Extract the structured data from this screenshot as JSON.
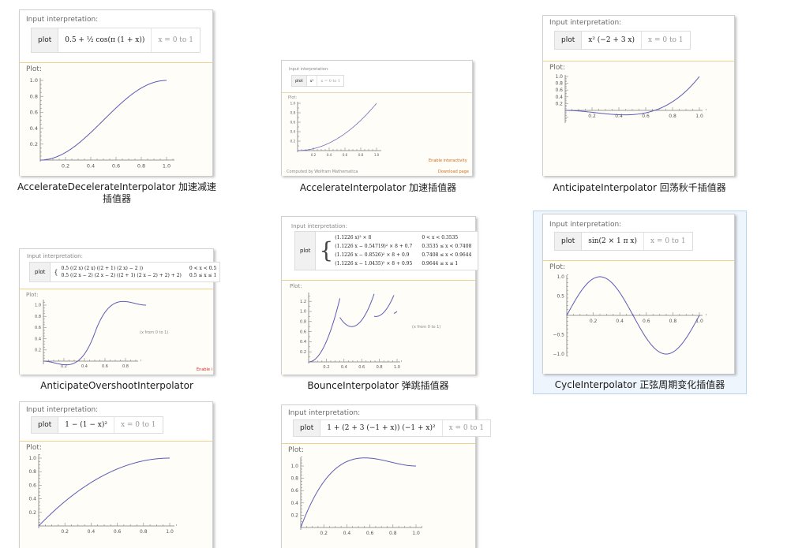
{
  "common": {
    "input_label": "Input interpretation:",
    "plot_label": "Plot:",
    "plot_word": "plot"
  },
  "tiles": [
    {
      "caption": "AccelerateDecelerateInterpolator 加速减速插值器",
      "expr": "0.5 + ½ cos(π (1 + x))",
      "range": "x = 0 to 1",
      "ticks_x": [
        "0.2",
        "0.4",
        "0.6",
        "0.8",
        "1.0"
      ],
      "ticks_y": [
        "0.2",
        "0.4",
        "0.6",
        "0.8",
        "1.0"
      ]
    },
    {
      "caption": "AccelerateInterpolator 加速插值器",
      "expr": "x²",
      "range": "x = 0 to 1",
      "ticks_x": [
        "0.2",
        "0.4",
        "0.6",
        "0.8",
        "1.0"
      ],
      "ticks_y": [
        "0.2",
        "0.4",
        "0.6",
        "0.8",
        "1.0"
      ],
      "footer_left": "Computed by Wolfram Mathematica",
      "footer_right": "Download page",
      "footer_link": "Enable interactivity"
    },
    {
      "caption": "AnticipateInterpolator 回荡秋千插值器",
      "expr": "x² (−2 + 3 x)",
      "range": "x = 0 to 1",
      "ticks_x": [
        "0.2",
        "0.4",
        "0.6",
        "0.8",
        "1.0"
      ],
      "ticks_y": [
        "0.2",
        "0.4",
        "0.6",
        "0.8",
        "1.0"
      ]
    },
    {
      "caption": "AnticipateOvershootInterpolator",
      "piece1": "0.5 ((2 x) (2 x) ((2 + 1) (2 x) − 2 ))",
      "cond1": "0 < x < 0.5",
      "piece2": "0.5 ((2 x − 2) (2 x − 2) ((2 + 1) (2 x − 2) + 2) + 2)",
      "cond2": "0.5 ≤ x ≤ 1",
      "note": "(x from 0 to 1)",
      "enable": "Enable i",
      "ticks_x": [
        "0.2",
        "0.4",
        "0.6",
        "0.8"
      ],
      "ticks_y": [
        "0.2",
        "0.4",
        "0.6",
        "0.8",
        "1.0"
      ]
    },
    {
      "caption": "BounceInterpolator 弹跳插值器",
      "pieces": [
        {
          "expr": "(1.1226 x)² × 8",
          "cond": "0 < x < 0.3535"
        },
        {
          "expr": "(1.1226 x − 0.54719)² × 8 + 0.7",
          "cond": "0.3535 ≤ x < 0.7408"
        },
        {
          "expr": "(1.1226 x − 0.8526)² × 8 + 0.9",
          "cond": "0.7408 ≤ x < 0.9644"
        },
        {
          "expr": "(1.1226 x − 1.0435)² × 8 + 0.95",
          "cond": "0.9644 ≤ x ≤ 1"
        }
      ],
      "note": "(x from 0 to 1)",
      "ticks_x": [
        "0.2",
        "0.4",
        "0.6",
        "0.8",
        "1.0"
      ],
      "ticks_y": [
        "0.2",
        "0.4",
        "0.6",
        "0.8",
        "1.0",
        "1.2"
      ]
    },
    {
      "caption": "CycleInterpolator 正弦周期变化插值器",
      "expr": "sin(2 × 1 π x)",
      "range": "x = 0 to 1",
      "ticks_x": [
        "0.2",
        "0.4",
        "0.6",
        "0.8",
        "1.0"
      ],
      "ticks_y": [
        "1.0",
        "0.5",
        "−0.5",
        "−1.0"
      ]
    },
    {
      "caption": "",
      "expr": "1 − (1 − x)²",
      "range": "x = 0 to 1",
      "ticks_x": [
        "0.2",
        "0.4",
        "0.6",
        "0.8",
        "1.0"
      ],
      "ticks_y": [
        "0.2",
        "0.4",
        "0.6",
        "0.8",
        "1.0"
      ]
    },
    {
      "caption": "",
      "expr": "1 + (2 + 3 (−1 + x)) (−1 + x)²",
      "range": "x = 0 to 1",
      "ticks_x": [
        "0.2",
        "0.4",
        "0.6",
        "0.8",
        "1.0"
      ],
      "ticks_y": [
        "0.2",
        "0.4",
        "0.6",
        "0.8",
        "1.0"
      ]
    }
  ]
}
